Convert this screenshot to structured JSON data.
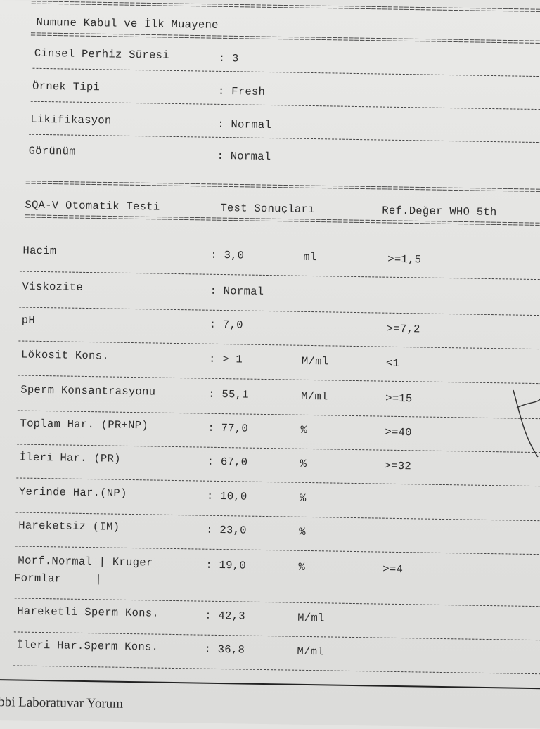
{
  "section_title": "Numune Kabul ve İlk Muayene",
  "intake": [
    {
      "label": "Cinsel Perhiz Süresi",
      "value": ": 3"
    },
    {
      "label": "Örnek Tipi",
      "value": ": Fresh"
    },
    {
      "label": "Likifikasyon",
      "value": ": Normal"
    },
    {
      "label": "Görünüm",
      "value": ": Normal"
    }
  ],
  "table_header": {
    "test": "SQA-V Otomatik Testi",
    "results": "Test Sonuçları",
    "reference": "Ref.Değer WHO 5th"
  },
  "results": [
    {
      "label": "Hacim",
      "value": ": 3,0",
      "unit": "ml",
      "ref": ">=1,5"
    },
    {
      "label": "Viskozite",
      "value": ": Normal",
      "unit": "",
      "ref": ""
    },
    {
      "label": "pH",
      "value": ": 7,0",
      "unit": "",
      "ref": ">=7,2"
    },
    {
      "label": "Lökosit Kons.",
      "value": ": > 1",
      "unit": "M/ml",
      "ref": "<1"
    },
    {
      "label": "Sperm Konsantrasyonu",
      "value": ": 55,1",
      "unit": "M/ml",
      "ref": ">=15"
    },
    {
      "label": "Toplam Har. (PR+NP)",
      "value": ": 77,0",
      "unit": "%",
      "ref": ">=40"
    },
    {
      "label": "İleri Har. (PR)",
      "value": ": 67,0",
      "unit": "%",
      "ref": ">=32"
    },
    {
      "label": "Yerinde Har.(NP)",
      "value": ": 10,0",
      "unit": "%",
      "ref": ""
    },
    {
      "label": "Hareketsiz (IM)",
      "value": ": 23,0",
      "unit": "%",
      "ref": ""
    },
    {
      "label": "Morf.Normal | Kruger",
      "label2": "Formlar     |",
      "value": ": 19,0",
      "unit": "%",
      "ref": ">=4"
    },
    {
      "label": "Hareketli Sperm Kons.",
      "value": ": 42,3",
      "unit": "M/ml",
      "ref": ""
    },
    {
      "label": "İleri Har.Sperm Kons.",
      "value": ": 36,8",
      "unit": "M/ml",
      "ref": ""
    }
  ],
  "footer_heading": "Tıbbi Laboratuvar Yorum"
}
